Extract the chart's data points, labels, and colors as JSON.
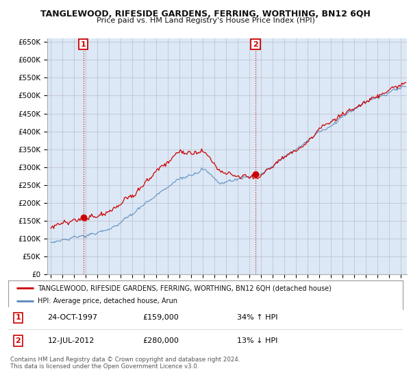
{
  "title": "TANGLEWOOD, RIFESIDE GARDENS, FERRING, WORTHING, BN12 6QH",
  "subtitle": "Price paid vs. HM Land Registry's House Price Index (HPI)",
  "property_label": "TANGLEWOOD, RIFESIDE GARDENS, FERRING, WORTHING, BN12 6QH (detached house)",
  "hpi_label": "HPI: Average price, detached house, Arun",
  "sale1": {
    "date": "24-OCT-1997",
    "price": 159000,
    "hpi_rel": "34% ↑ HPI",
    "year": 1997.79
  },
  "sale2": {
    "date": "12-JUL-2012",
    "price": 280000,
    "hpi_rel": "13% ↓ HPI",
    "year": 2012.54
  },
  "footer": "Contains HM Land Registry data © Crown copyright and database right 2024.\nThis data is licensed under the Open Government Licence v3.0.",
  "property_color": "#cc0000",
  "hpi_color": "#5588bb",
  "bg_fill_color": "#dce8f5",
  "grid_color": "#bbbbcc",
  "background_color": "#ffffff",
  "ylim": [
    0,
    660000
  ],
  "yticks": [
    0,
    50000,
    100000,
    150000,
    200000,
    250000,
    300000,
    350000,
    400000,
    450000,
    500000,
    550000,
    600000,
    650000
  ],
  "xlim_start": 1994.7,
  "xlim_end": 2025.5
}
